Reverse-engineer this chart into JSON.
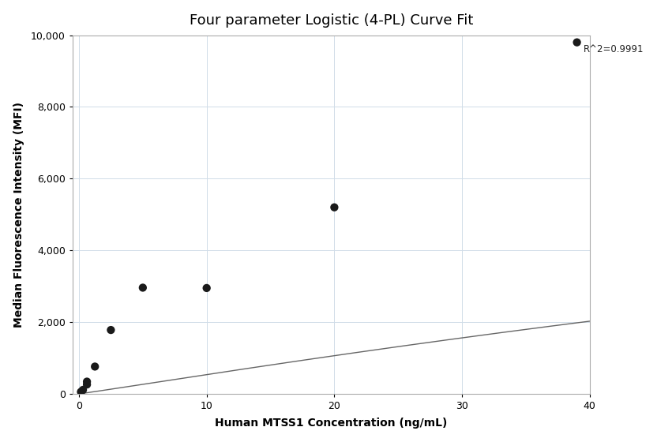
{
  "title": "Four parameter Logistic (4-PL) Curve Fit",
  "xlabel": "Human MTSS1 Concentration (ng/mL)",
  "ylabel": "Median Fluorescence Intensity (MFI)",
  "scatter_x": [
    0.156,
    0.313,
    0.625,
    0.625,
    1.25,
    2.5,
    5.0,
    10.0,
    20.0,
    39.0
  ],
  "scatter_y": [
    55,
    110,
    260,
    340,
    760,
    1780,
    2960,
    2950,
    5200,
    9800
  ],
  "r_squared": "R^2=0.9991",
  "xlim": [
    -0.5,
    40
  ],
  "ylim": [
    0,
    10000
  ],
  "xticks": [
    0,
    10,
    20,
    30,
    40
  ],
  "yticks": [
    0,
    2000,
    4000,
    6000,
    8000,
    10000
  ],
  "scatter_color": "#1a1a1a",
  "line_color": "#666666",
  "grid_color": "#d0dce8",
  "bg_color": "#ffffff",
  "title_fontsize": 13,
  "label_fontsize": 10,
  "tick_fontsize": 9,
  "annotation_fontsize": 8.5
}
